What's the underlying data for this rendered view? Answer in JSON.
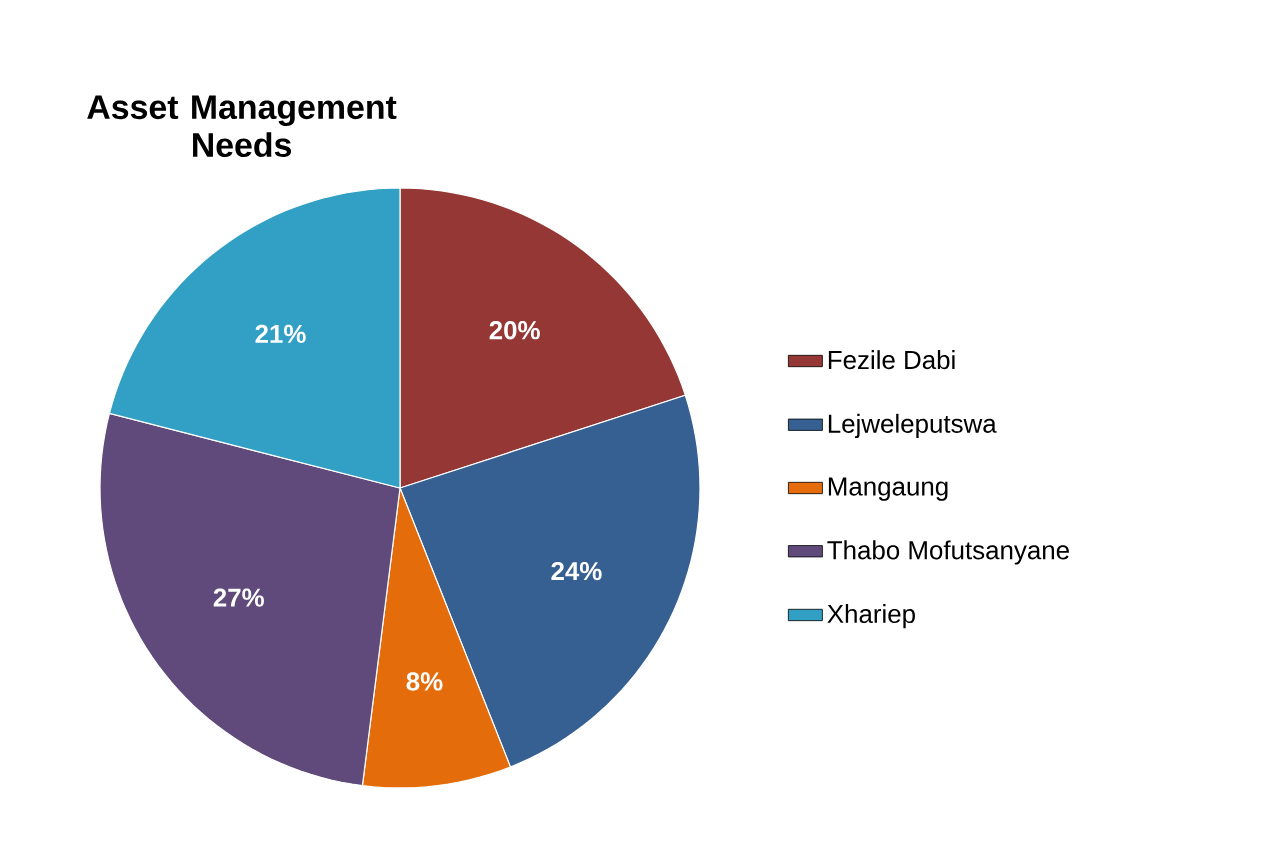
{
  "chart_data": {
    "type": "pie",
    "title": "Asset Management Needs",
    "categories": [
      "Fezile Dabi",
      "Lejweleputswa",
      "Mangaung",
      "Thabo Mofutsanyane",
      "Xhariep"
    ],
    "values": [
      20,
      24,
      8,
      27,
      21
    ],
    "value_labels": [
      "20%",
      "24%",
      "8%",
      "27%",
      "21%"
    ],
    "colors": [
      "#953735",
      "#376092",
      "#e46c0a",
      "#604a7b",
      "#31a0c4"
    ],
    "legend": "right"
  }
}
